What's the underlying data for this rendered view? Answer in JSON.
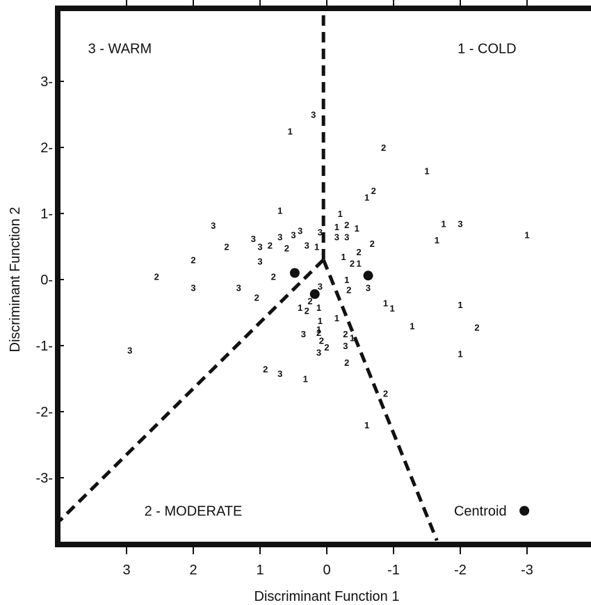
{
  "chart_data": {
    "type": "scatter",
    "title": "",
    "xlabel": "Discriminant Function 1",
    "ylabel": "Discriminant Function 2",
    "xlim": [
      4,
      -4
    ],
    "ylim": [
      -4,
      4
    ],
    "x_ticks": [
      3,
      2,
      1,
      0,
      -1,
      -2,
      -3
    ],
    "y_ticks": [
      3,
      2,
      1,
      0,
      -1,
      -2,
      -3
    ],
    "x_tick_labels": [
      "3",
      "2",
      "1",
      "0",
      "-1",
      "-2",
      "-3"
    ],
    "y_tick_labels": [
      "3-",
      "2-",
      "1-",
      "0-",
      "-1-",
      "-2-",
      "-3-"
    ],
    "grid": false,
    "regions": [
      {
        "label": "3 - WARM",
        "x": 3.1,
        "y": 3.5
      },
      {
        "label": "1 - COLD",
        "x": -2.4,
        "y": 3.5
      },
      {
        "label": "2 - MODERATE",
        "x": 2.0,
        "y": -3.5
      }
    ],
    "boundaries": [
      [
        [
          0.05,
          4.0
        ],
        [
          0.05,
          0.3
        ]
      ],
      [
        [
          0.05,
          0.3
        ],
        [
          4.0,
          -3.65
        ]
      ],
      [
        [
          0.05,
          0.3
        ],
        [
          -1.65,
          -3.95
        ]
      ]
    ],
    "centroids": [
      {
        "x": 0.48,
        "y": 0.1
      },
      {
        "x": 0.18,
        "y": -0.22
      },
      {
        "x": -0.62,
        "y": 0.06
      }
    ],
    "legend": {
      "label": "Centroid",
      "x": -2.3,
      "y": -3.5,
      "marker_x": -2.96,
      "marker_y": -3.5
    },
    "points": [
      {
        "g": "3",
        "x": 0.2,
        "y": 2.5
      },
      {
        "g": "1",
        "x": 0.55,
        "y": 2.25
      },
      {
        "g": "2",
        "x": -0.85,
        "y": 2.0
      },
      {
        "g": "1",
        "x": -1.5,
        "y": 1.65
      },
      {
        "g": "2",
        "x": -0.7,
        "y": 1.35
      },
      {
        "g": "1",
        "x": -0.6,
        "y": 1.25
      },
      {
        "g": "1",
        "x": 0.7,
        "y": 1.05
      },
      {
        "g": "1",
        "x": -0.2,
        "y": 1.0
      },
      {
        "g": "1",
        "x": -1.75,
        "y": 0.85
      },
      {
        "g": "3",
        "x": -2.0,
        "y": 0.85
      },
      {
        "g": "1",
        "x": -3.0,
        "y": 0.68
      },
      {
        "g": "1",
        "x": -1.65,
        "y": 0.6
      },
      {
        "g": "3",
        "x": 1.7,
        "y": 0.82
      },
      {
        "g": "2",
        "x": 1.5,
        "y": 0.5
      },
      {
        "g": "3",
        "x": 1.1,
        "y": 0.62
      },
      {
        "g": "3",
        "x": 1.0,
        "y": 0.5
      },
      {
        "g": "2",
        "x": 0.85,
        "y": 0.52
      },
      {
        "g": "3",
        "x": 0.7,
        "y": 0.65
      },
      {
        "g": "3",
        "x": 0.5,
        "y": 0.68
      },
      {
        "g": "3",
        "x": 0.4,
        "y": 0.74
      },
      {
        "g": "2",
        "x": 0.6,
        "y": 0.48
      },
      {
        "g": "3",
        "x": 0.3,
        "y": 0.52
      },
      {
        "g": "1",
        "x": 0.15,
        "y": 0.5
      },
      {
        "g": "3",
        "x": 0.1,
        "y": 0.72
      },
      {
        "g": "1",
        "x": -0.15,
        "y": 0.8
      },
      {
        "g": "2",
        "x": -0.3,
        "y": 0.83
      },
      {
        "g": "1",
        "x": -0.45,
        "y": 0.78
      },
      {
        "g": "3",
        "x": -0.15,
        "y": 0.65
      },
      {
        "g": "3",
        "x": -0.3,
        "y": 0.65
      },
      {
        "g": "2",
        "x": -0.68,
        "y": 0.55
      },
      {
        "g": "2",
        "x": -0.48,
        "y": 0.42
      },
      {
        "g": "1",
        "x": -0.25,
        "y": 0.35
      },
      {
        "g": "2",
        "x": -0.38,
        "y": 0.25
      },
      {
        "g": "1",
        "x": -0.48,
        "y": 0.25
      },
      {
        "g": "2",
        "x": 2.0,
        "y": 0.3
      },
      {
        "g": "3",
        "x": 1.0,
        "y": 0.28
      },
      {
        "g": "2",
        "x": 0.8,
        "y": 0.05
      },
      {
        "g": "2",
        "x": 2.55,
        "y": 0.05
      },
      {
        "g": "3",
        "x": 2.0,
        "y": -0.12
      },
      {
        "g": "3",
        "x": 1.32,
        "y": -0.12
      },
      {
        "g": "2",
        "x": 1.05,
        "y": -0.27
      },
      {
        "g": "3",
        "x": 0.1,
        "y": -0.1
      },
      {
        "g": "1",
        "x": -0.3,
        "y": 0.0
      },
      {
        "g": "2",
        "x": -0.33,
        "y": -0.15
      },
      {
        "g": "3",
        "x": -0.62,
        "y": -0.12
      },
      {
        "g": "2",
        "x": 0.25,
        "y": -0.32
      },
      {
        "g": "1",
        "x": 0.4,
        "y": -0.42
      },
      {
        "g": "2",
        "x": 0.3,
        "y": -0.47
      },
      {
        "g": "1",
        "x": 0.12,
        "y": -0.42
      },
      {
        "g": "1",
        "x": -0.88,
        "y": -0.35
      },
      {
        "g": "1",
        "x": -0.98,
        "y": -0.43
      },
      {
        "g": "1",
        "x": -2.0,
        "y": -0.38
      },
      {
        "g": "1",
        "x": 0.1,
        "y": -0.62
      },
      {
        "g": "1",
        "x": -0.15,
        "y": -0.58
      },
      {
        "g": "1",
        "x": -1.28,
        "y": -0.7
      },
      {
        "g": "2",
        "x": -2.25,
        "y": -0.72
      },
      {
        "g": "1",
        "x": 0.12,
        "y": -0.75
      },
      {
        "g": "3",
        "x": 0.35,
        "y": -0.82
      },
      {
        "g": "2",
        "x": 0.12,
        "y": -0.8
      },
      {
        "g": "2",
        "x": -0.28,
        "y": -0.82
      },
      {
        "g": "1",
        "x": -0.38,
        "y": -0.88
      },
      {
        "g": "2",
        "x": 0.08,
        "y": -0.92
      },
      {
        "g": "2",
        "x": 0.0,
        "y": -1.02
      },
      {
        "g": "3",
        "x": 0.12,
        "y": -1.1
      },
      {
        "g": "3",
        "x": -0.28,
        "y": -1.0
      },
      {
        "g": "1",
        "x": -2.0,
        "y": -1.12
      },
      {
        "g": "2",
        "x": -0.3,
        "y": -1.25
      },
      {
        "g": "3",
        "x": 2.95,
        "y": -1.07
      },
      {
        "g": "2",
        "x": 0.92,
        "y": -1.35
      },
      {
        "g": "3",
        "x": 0.7,
        "y": -1.42
      },
      {
        "g": "1",
        "x": 0.32,
        "y": -1.5
      },
      {
        "g": "2",
        "x": -0.88,
        "y": -1.72
      },
      {
        "g": "1",
        "x": -0.6,
        "y": -2.2
      }
    ]
  }
}
